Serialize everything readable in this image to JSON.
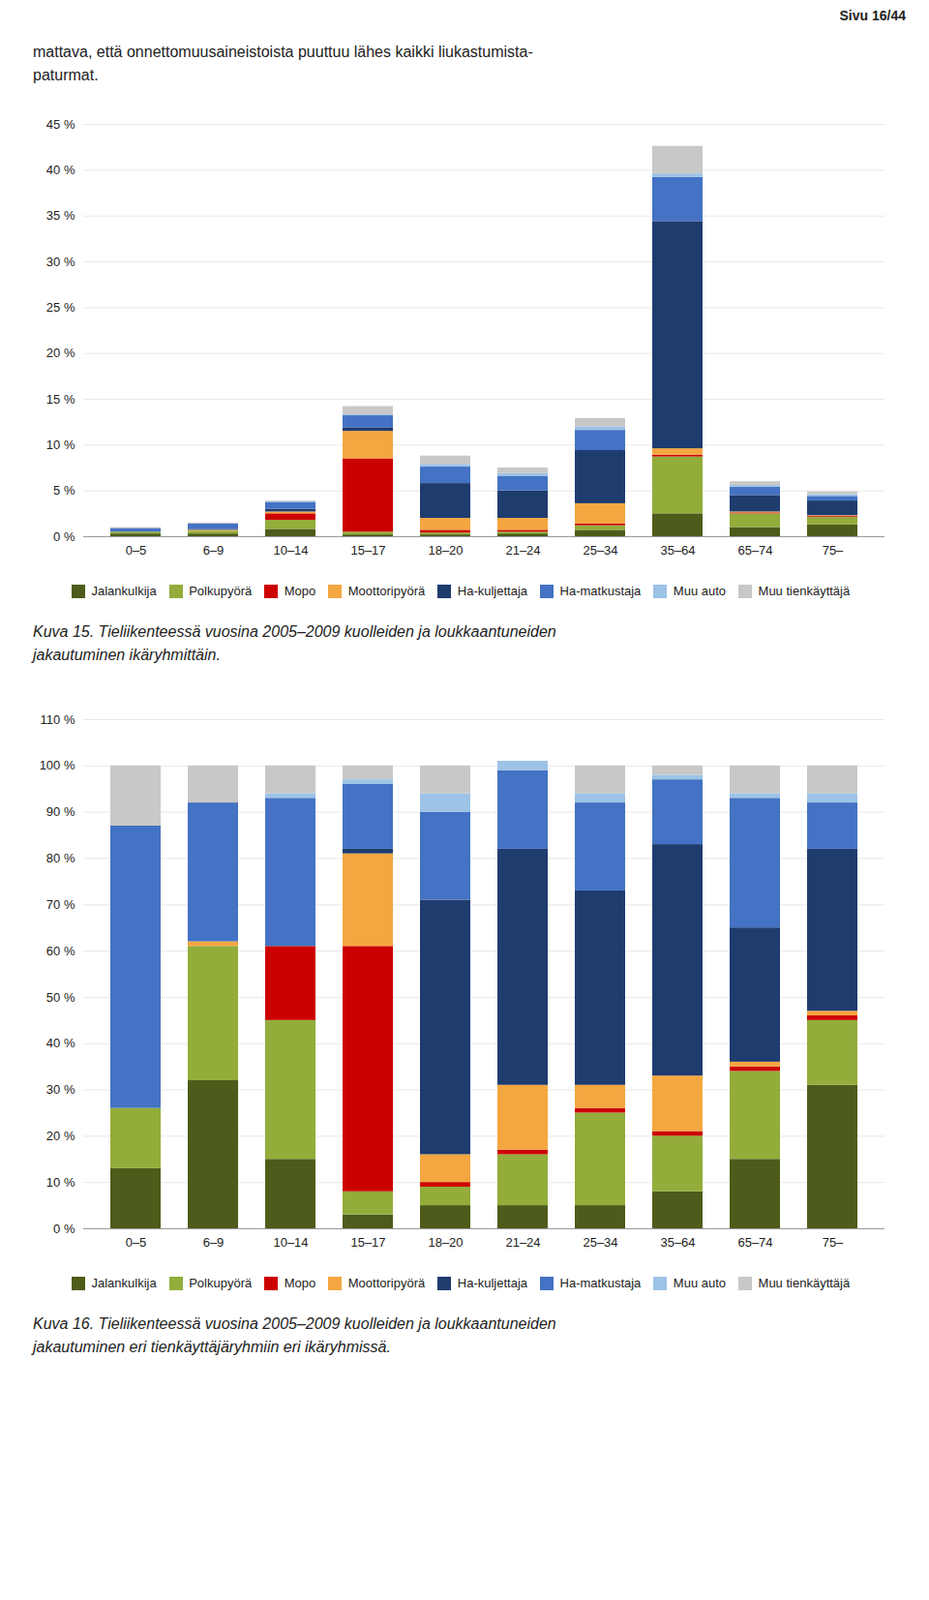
{
  "header_text": "Sivu 16/44",
  "intro": [
    "mattava, että onnettomuusaineistoista puuttuu lähes kaikki liukastumista-",
    "paturmat."
  ],
  "chart_data": [
    {
      "type": "bar",
      "stacked": true,
      "categories": [
        "0–5",
        "6–9",
        "10–14",
        "15–17",
        "18–20",
        "21–24",
        "25–34",
        "35–64",
        "65–74",
        "75–"
      ],
      "series": [
        {
          "name": "Jalankulkija",
          "color": "#4d5c1a",
          "values": [
            0.003,
            0.003,
            0.008,
            0.002,
            0.002,
            0.003,
            0.007,
            0.025,
            0.01,
            0.013
          ]
        },
        {
          "name": "Polkupyörä",
          "color": "#92ad3a",
          "values": [
            0.002,
            0.003,
            0.01,
            0.003,
            0.002,
            0.002,
            0.005,
            0.062,
            0.015,
            0.008
          ]
        },
        {
          "name": "Mopo",
          "color": "#cc0000",
          "values": [
            0.0,
            0.0,
            0.007,
            0.08,
            0.003,
            0.002,
            0.002,
            0.002,
            0.001,
            0.001
          ]
        },
        {
          "name": "Moottoripyörä",
          "color": "#f4a640",
          "values": [
            0.0,
            0.001,
            0.002,
            0.03,
            0.013,
            0.013,
            0.022,
            0.007,
            0.001,
            0.001
          ]
        },
        {
          "name": "Ha-kuljettaja",
          "color": "#1f3c6e",
          "values": [
            0.0,
            0.001,
            0.003,
            0.004,
            0.038,
            0.03,
            0.058,
            0.248,
            0.018,
            0.016
          ]
        },
        {
          "name": "Ha-matkustaja",
          "color": "#4472c4",
          "values": [
            0.004,
            0.006,
            0.007,
            0.013,
            0.018,
            0.016,
            0.022,
            0.048,
            0.009,
            0.005
          ]
        },
        {
          "name": "Muu auto",
          "color": "#9dc3e6",
          "values": [
            0.0,
            0.0,
            0.001,
            0.001,
            0.003,
            0.003,
            0.004,
            0.004,
            0.002,
            0.002
          ]
        },
        {
          "name": "Muu tienkäyttäjä",
          "color": "#c8c8c8",
          "values": [
            0.001,
            0.001,
            0.001,
            0.009,
            0.009,
            0.006,
            0.009,
            0.03,
            0.004,
            0.003
          ]
        }
      ],
      "ylim": [
        0,
        0.45
      ],
      "yticks": [
        {
          "value": 0,
          "label": "0 %"
        },
        {
          "value": 0.05,
          "label": "5 %"
        },
        {
          "value": 0.1,
          "label": "10 %"
        },
        {
          "value": 0.15,
          "label": "15 %"
        },
        {
          "value": 0.2,
          "label": "20 %"
        },
        {
          "value": 0.25,
          "label": "25 %"
        },
        {
          "value": 0.3,
          "label": "30 %"
        },
        {
          "value": 0.35,
          "label": "35 %"
        },
        {
          "value": 0.4,
          "label": "40 %"
        },
        {
          "value": 0.45,
          "label": "45 %"
        }
      ],
      "grid": true,
      "legend": "bottom",
      "caption": [
        "Kuva 15. Tieliikenteessä vuosina 2005–2009 kuolleiden ja loukkaantuneiden",
        "jakautuminen ikäryhmittäin."
      ]
    },
    {
      "type": "bar",
      "stacked": true,
      "categories": [
        "0–5",
        "6–9",
        "10–14",
        "15–17",
        "18–20",
        "21–24",
        "25–34",
        "35–64",
        "65–74",
        "75–"
      ],
      "series": [
        {
          "name": "Jalankulkija",
          "color": "#4d5c1a",
          "values": [
            0.13,
            0.32,
            0.15,
            0.03,
            0.05,
            0.05,
            0.05,
            0.08,
            0.15,
            0.31
          ]
        },
        {
          "name": "Polkupyörä",
          "color": "#92ad3a",
          "values": [
            0.13,
            0.29,
            0.3,
            0.05,
            0.04,
            0.11,
            0.2,
            0.12,
            0.19,
            0.14
          ]
        },
        {
          "name": "Mopo",
          "color": "#cc0000",
          "values": [
            0.0,
            0.0,
            0.16,
            0.53,
            0.01,
            0.01,
            0.01,
            0.01,
            0.01,
            0.01
          ]
        },
        {
          "name": "Moottoripyörä",
          "color": "#f4a640",
          "values": [
            0.0,
            0.01,
            0.0,
            0.2,
            0.06,
            0.14,
            0.05,
            0.12,
            0.01,
            0.01
          ]
        },
        {
          "name": "Ha-kuljettaja",
          "color": "#1f3c6e",
          "values": [
            0.0,
            0.0,
            0.0,
            0.01,
            0.55,
            0.51,
            0.42,
            0.5,
            0.29,
            0.35
          ]
        },
        {
          "name": "Ha-matkustaja",
          "color": "#4472c4",
          "values": [
            0.61,
            0.3,
            0.32,
            0.14,
            0.19,
            0.17,
            0.19,
            0.14,
            0.28,
            0.1
          ]
        },
        {
          "name": "Muu auto",
          "color": "#9dc3e6",
          "values": [
            0.0,
            0.0,
            0.01,
            0.01,
            0.04,
            0.02,
            0.02,
            0.01,
            0.01,
            0.02
          ]
        },
        {
          "name": "Muu tienkäyttäjä",
          "color": "#c8c8c8",
          "values": [
            0.13,
            0.08,
            0.06,
            0.03,
            0.06,
            0.0,
            0.06,
            0.02,
            0.06,
            0.06
          ]
        }
      ],
      "ylim": [
        0,
        1.1
      ],
      "yticks": [
        {
          "value": 0,
          "label": "0 %"
        },
        {
          "value": 0.1,
          "label": "10 %"
        },
        {
          "value": 0.2,
          "label": "20 %"
        },
        {
          "value": 0.3,
          "label": "30 %"
        },
        {
          "value": 0.4,
          "label": "40 %"
        },
        {
          "value": 0.5,
          "label": "50 %"
        },
        {
          "value": 0.6,
          "label": "60 %"
        },
        {
          "value": 0.7,
          "label": "70 %"
        },
        {
          "value": 0.8,
          "label": "80 %"
        },
        {
          "value": 0.9,
          "label": "90 %"
        },
        {
          "value": 1,
          "label": "100 %"
        },
        {
          "value": 1.1,
          "label": "110 %"
        }
      ],
      "grid": true,
      "legend": "bottom",
      "caption": [
        "Kuva 16. Tieliikenteessä vuosina 2005–2009 kuolleiden ja loukkaantuneiden",
        "jakautuminen eri tienkäyttäjäryhmiin eri ikäryhmissä."
      ]
    }
  ]
}
